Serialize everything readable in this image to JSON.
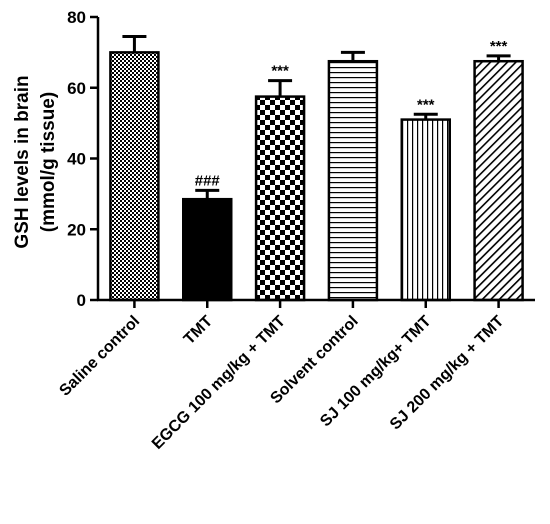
{
  "chart_data": {
    "type": "bar",
    "title": "",
    "ylabel_line1": "GSH levels in brain",
    "ylabel_line2": "(mmol/g tissue)",
    "xlabel": "",
    "ylim": [
      0,
      80
    ],
    "yticks": [
      "0",
      "20",
      "40",
      "60",
      "80"
    ],
    "grid": false,
    "categories": [
      "Saline control",
      "TMT",
      "EGCG 100 mg/kg + TMT",
      "Solvent control",
      "SJ 100 mg/kg+ TMT",
      "SJ 200 mg/kg + TMT"
    ],
    "values": [
      70,
      28.5,
      57.5,
      67.5,
      51,
      67.5
    ],
    "errors": [
      4.5,
      2.5,
      4.5,
      2.5,
      1.5,
      1.5
    ],
    "patterns": [
      "fine-checker",
      "solid-black",
      "checkerboard",
      "horizontal-lines",
      "vertical-lines",
      "diagonal-lines"
    ],
    "annotations": [
      "",
      "###",
      "***",
      "",
      "***",
      "***"
    ]
  }
}
